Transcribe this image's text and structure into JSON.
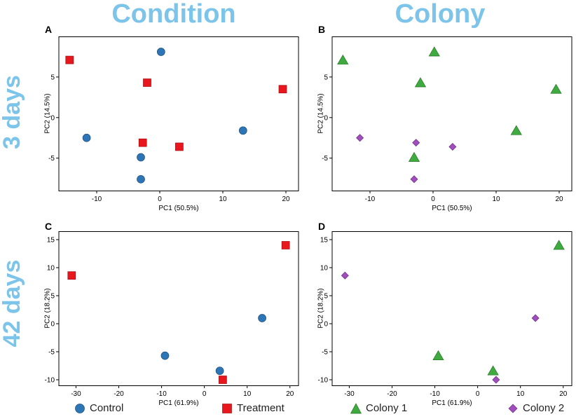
{
  "headers": {
    "columns": [
      "Condition",
      "Colony"
    ],
    "rows": [
      "3 days",
      "42 days"
    ]
  },
  "colors": {
    "header": "#7cc4ea",
    "control": "#2e75b6",
    "treatment": "#e8161d",
    "colony1": "#3faa3f",
    "colony2": "#a04dbd"
  },
  "legend": {
    "condition": [
      {
        "label": "Control",
        "marker": "circle",
        "color": "#2e75b6"
      },
      {
        "label": "Treatment",
        "marker": "square",
        "color": "#e8161d"
      }
    ],
    "colony": [
      {
        "label": "Colony 1",
        "marker": "triangle",
        "color": "#3faa3f"
      },
      {
        "label": "Colony 2",
        "marker": "diamond",
        "color": "#a04dbd"
      }
    ]
  },
  "chart_data": [
    {
      "panel": "A",
      "type": "scatter",
      "xlabel": "PC1 (50.5%)",
      "ylabel": "PC2 (14.5%)",
      "xlim": [
        -16,
        22
      ],
      "ylim": [
        -9,
        10
      ],
      "xticks": [
        -10,
        0,
        10,
        20
      ],
      "yticks": [
        -5,
        0,
        5
      ],
      "series": [
        {
          "name": "Control",
          "marker": "circle",
          "color": "#2e75b6",
          "points": [
            [
              0.2,
              8.1
            ],
            [
              -11.6,
              -2.5
            ],
            [
              13.2,
              -1.6
            ],
            [
              -3.0,
              -4.9
            ],
            [
              -3.0,
              -7.6
            ]
          ]
        },
        {
          "name": "Treatment",
          "marker": "square",
          "color": "#e8161d",
          "points": [
            [
              -14.3,
              7.1
            ],
            [
              -2.0,
              4.3
            ],
            [
              19.5,
              3.5
            ],
            [
              -2.7,
              -3.1
            ],
            [
              3.1,
              -3.6
            ]
          ]
        }
      ]
    },
    {
      "panel": "B",
      "type": "scatter",
      "xlabel": "PC1 (50.5%)",
      "ylabel": "PC2 (14.5%)",
      "xlim": [
        -16,
        22
      ],
      "ylim": [
        -9,
        10
      ],
      "xticks": [
        -10,
        0,
        10,
        20
      ],
      "yticks": [
        -5,
        0,
        5
      ],
      "series": [
        {
          "name": "Colony 1",
          "marker": "triangle",
          "color": "#3faa3f",
          "points": [
            [
              0.2,
              8.1
            ],
            [
              -14.3,
              7.1
            ],
            [
              -2.0,
              4.3
            ],
            [
              19.5,
              3.5
            ],
            [
              13.2,
              -1.6
            ],
            [
              -3.0,
              -4.9
            ]
          ]
        },
        {
          "name": "Colony 2",
          "marker": "diamond",
          "color": "#a04dbd",
          "points": [
            [
              -11.6,
              -2.5
            ],
            [
              -2.7,
              -3.1
            ],
            [
              3.1,
              -3.6
            ],
            [
              -3.0,
              -7.6
            ]
          ]
        }
      ]
    },
    {
      "panel": "C",
      "type": "scatter",
      "xlabel": "PC1 (61.9%)",
      "ylabel": "PC2 (18.2%)",
      "xlim": [
        -34,
        22
      ],
      "ylim": [
        -11,
        16.5
      ],
      "xticks": [
        -30,
        -20,
        -10,
        0,
        10,
        20
      ],
      "yticks": [
        -10,
        -5,
        0,
        5,
        10,
        15
      ],
      "series": [
        {
          "name": "Control",
          "marker": "circle",
          "color": "#2e75b6",
          "points": [
            [
              -9.2,
              -5.7
            ],
            [
              3.6,
              -8.4
            ],
            [
              13.5,
              1.0
            ]
          ]
        },
        {
          "name": "Treatment",
          "marker": "square",
          "color": "#e8161d",
          "points": [
            [
              -31.0,
              8.6
            ],
            [
              19.0,
              14.0
            ],
            [
              4.3,
              -10.0
            ]
          ]
        }
      ]
    },
    {
      "panel": "D",
      "type": "scatter",
      "xlabel": "PC1 (61.9%)",
      "ylabel": "PC2 (18.2%)",
      "xlim": [
        -34,
        22
      ],
      "ylim": [
        -11,
        16.5
      ],
      "xticks": [
        -30,
        -20,
        -10,
        0,
        10,
        20
      ],
      "yticks": [
        -10,
        -5,
        0,
        5,
        10,
        15
      ],
      "series": [
        {
          "name": "Colony 1",
          "marker": "triangle",
          "color": "#3faa3f",
          "points": [
            [
              19.0,
              14.0
            ],
            [
              -9.2,
              -5.7
            ],
            [
              3.6,
              -8.4
            ]
          ]
        },
        {
          "name": "Colony 2",
          "marker": "diamond",
          "color": "#a04dbd",
          "points": [
            [
              -31.0,
              8.6
            ],
            [
              13.5,
              1.0
            ],
            [
              4.3,
              -10.0
            ]
          ]
        }
      ]
    }
  ]
}
